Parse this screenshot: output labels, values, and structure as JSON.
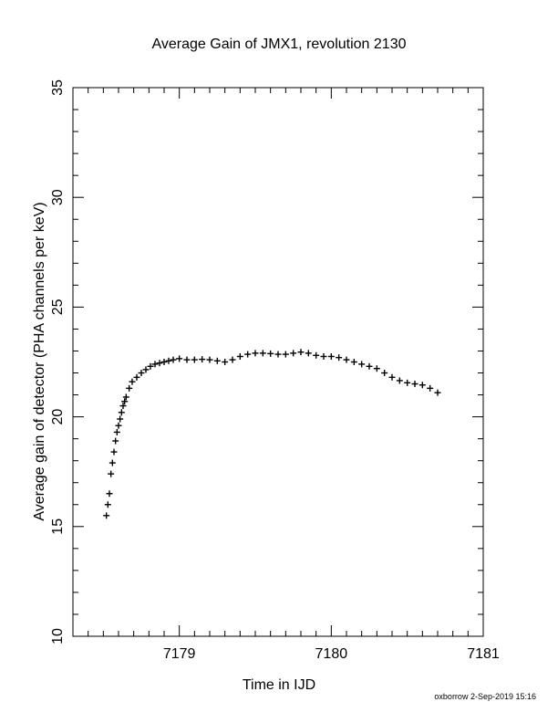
{
  "chart_data": {
    "type": "scatter",
    "title": "Average Gain of JMX1, revolution 2130",
    "xlabel": "Time in IJD",
    "ylabel": "Average gain of detector (PHA channels per keV)",
    "xlim": [
      7178.3,
      7181
    ],
    "ylim": [
      10,
      35
    ],
    "x_ticks": [
      "7179",
      "7180",
      "7181"
    ],
    "y_ticks": [
      "10",
      "15",
      "20",
      "25",
      "30",
      "35"
    ],
    "grid": false,
    "marker": "plus",
    "series": [
      {
        "x": [
          7178.52,
          7178.53,
          7178.54,
          7178.55,
          7178.56,
          7178.57,
          7178.58,
          7178.59,
          7178.6,
          7178.61,
          7178.62,
          7178.63,
          7178.64,
          7178.65,
          7178.67,
          7178.69,
          7178.72,
          7178.75,
          7178.78,
          7178.81,
          7178.84,
          7178.87,
          7178.9,
          7178.93,
          7178.96,
          7179.0,
          7179.05,
          7179.1,
          7179.15,
          7179.2,
          7179.25,
          7179.3,
          7179.35,
          7179.4,
          7179.45,
          7179.5,
          7179.55,
          7179.6,
          7179.65,
          7179.7,
          7179.75,
          7179.8,
          7179.85,
          7179.9,
          7179.95,
          7180.0,
          7180.05,
          7180.1,
          7180.15,
          7180.2,
          7180.25,
          7180.3,
          7180.35,
          7180.4,
          7180.45,
          7180.5,
          7180.55,
          7180.6,
          7180.65,
          7180.7
        ],
        "y": [
          15.5,
          16.0,
          16.5,
          17.4,
          17.9,
          18.4,
          18.9,
          19.3,
          19.6,
          19.9,
          20.2,
          20.5,
          20.7,
          20.9,
          21.3,
          21.6,
          21.8,
          22.0,
          22.15,
          22.3,
          22.4,
          22.45,
          22.5,
          22.55,
          22.6,
          22.65,
          22.6,
          22.6,
          22.62,
          22.6,
          22.55,
          22.5,
          22.6,
          22.75,
          22.85,
          22.9,
          22.9,
          22.88,
          22.85,
          22.85,
          22.9,
          22.95,
          22.9,
          22.8,
          22.75,
          22.75,
          22.7,
          22.6,
          22.5,
          22.4,
          22.3,
          22.2,
          22.0,
          21.8,
          21.65,
          21.55,
          21.5,
          21.45,
          21.3,
          21.1
        ]
      }
    ]
  },
  "footer": "oxborrow  2-Sep-2019 15:16"
}
